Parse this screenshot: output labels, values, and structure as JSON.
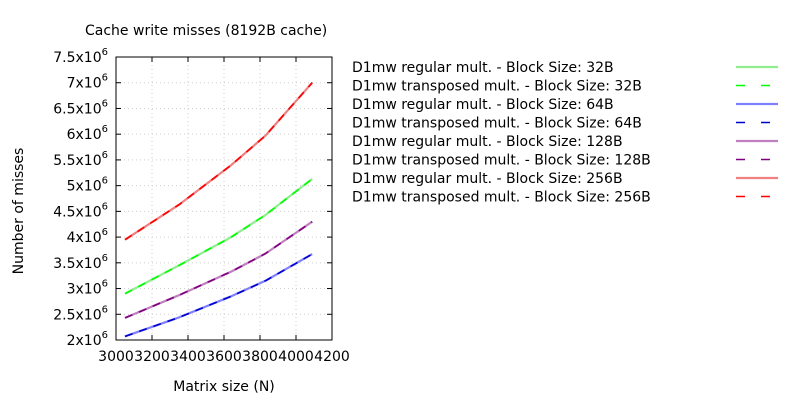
{
  "chart_data": {
    "type": "line",
    "title": "Cache write misses (8192B cache)",
    "xlabel": "Matrix size (N)",
    "ylabel": "Number of misses",
    "xlim": [
      3000,
      4200
    ],
    "ylim": [
      2000000,
      7500000
    ],
    "x_ticks": [
      3000,
      3200,
      3400,
      3600,
      3800,
      4000,
      4200
    ],
    "x_tick_labels": [
      "3000",
      "3200",
      "3400",
      "3600",
      "3800",
      "4000",
      "4200"
    ],
    "y_ticks": [
      2000000,
      2500000,
      3000000,
      3500000,
      4000000,
      4500000,
      5000000,
      5500000,
      6000000,
      6500000,
      7000000,
      7500000
    ],
    "y_tick_mantissas": [
      "2",
      "2.5",
      "3",
      "3.5",
      "4",
      "4.5",
      "5",
      "5.5",
      "6",
      "6.5",
      "7",
      "7.5"
    ],
    "y_tick_base": "x10",
    "y_tick_exponent": "6",
    "grid": true,
    "legend_position": "right",
    "series": [
      {
        "name": "D1mw regular mult. - Block Size: 32B",
        "color": "#90ee90",
        "style": "solid",
        "x": [
          3050,
          3350,
          3640,
          3830,
          4090
        ],
        "y": [
          2900000,
          3450000,
          4000000,
          4430000,
          5130000
        ]
      },
      {
        "name": "D1mw transposed mult. - Block Size: 32B",
        "color": "#00ff00",
        "style": "dashed",
        "x": [
          3050,
          3350,
          3640,
          3830,
          4090
        ],
        "y": [
          2900000,
          3450000,
          4000000,
          4430000,
          5130000
        ]
      },
      {
        "name": "D1mw regular mult. - Block Size: 64B",
        "color": "#8080ff",
        "style": "solid",
        "x": [
          3050,
          3350,
          3640,
          3830,
          4090
        ],
        "y": [
          2070000,
          2440000,
          2850000,
          3150000,
          3670000
        ]
      },
      {
        "name": "D1mw transposed mult. - Block Size: 64B",
        "color": "#0000cd",
        "style": "dashed",
        "x": [
          3050,
          3350,
          3640,
          3830,
          4090
        ],
        "y": [
          2070000,
          2440000,
          2850000,
          3150000,
          3670000
        ]
      },
      {
        "name": "D1mw regular mult. - Block Size: 128B",
        "color": "#c080c0",
        "style": "solid",
        "x": [
          3050,
          3350,
          3640,
          3830,
          4090
        ],
        "y": [
          2430000,
          2870000,
          3330000,
          3680000,
          4300000
        ]
      },
      {
        "name": "D1mw transposed mult. - Block Size: 128B",
        "color": "#800080",
        "style": "dashed",
        "x": [
          3050,
          3350,
          3640,
          3830,
          4090
        ],
        "y": [
          2430000,
          2870000,
          3330000,
          3680000,
          4300000
        ]
      },
      {
        "name": "D1mw regular mult. - Block Size: 256B",
        "color": "#f08080",
        "style": "solid",
        "x": [
          3050,
          3350,
          3640,
          3830,
          4090
        ],
        "y": [
          3950000,
          4630000,
          5400000,
          5970000,
          7000000
        ]
      },
      {
        "name": "D1mw transposed mult. - Block Size: 256B",
        "color": "#ff0000",
        "style": "dashed",
        "x": [
          3050,
          3350,
          3640,
          3830,
          4090
        ],
        "y": [
          3950000,
          4630000,
          5400000,
          5970000,
          7000000
        ]
      }
    ]
  }
}
